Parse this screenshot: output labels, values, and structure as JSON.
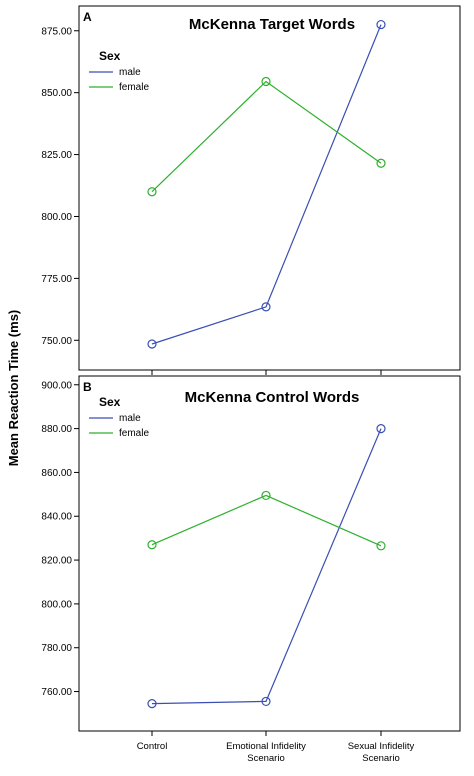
{
  "figure": {
    "ylabel": "Mean Reaction Time (ms)",
    "x_categories": [
      [
        "Control"
      ],
      [
        "Emotional Infidelity",
        "Scenario"
      ],
      [
        "Sexual Infidelity",
        "Scenario"
      ]
    ]
  },
  "colors": {
    "male": "#3a4fb3",
    "female": "#2db02d",
    "axis": "#000000"
  },
  "chart_data": [
    {
      "type": "line",
      "panel": "A",
      "title": "McKenna Target Words",
      "categories": [
        "Control",
        "Emotional Infidelity Scenario",
        "Sexual Infidelity Scenario"
      ],
      "ylabel": "Mean Reaction Time (ms)",
      "ylim": [
        738,
        885
      ],
      "yticks": [
        750,
        775,
        800,
        825,
        850,
        875
      ],
      "ytick_labels": [
        "750.00",
        "775.00",
        "800.00",
        "825.00",
        "850.00",
        "875.00"
      ],
      "legend": {
        "title": "Sex",
        "entries": [
          "male",
          "female"
        ],
        "position": "top-left"
      },
      "series": [
        {
          "name": "male",
          "values": [
            748.5,
            763.5,
            877.5
          ]
        },
        {
          "name": "female",
          "values": [
            810.0,
            854.5,
            821.5
          ]
        }
      ]
    },
    {
      "type": "line",
      "panel": "B",
      "title": "McKenna Control Words",
      "categories": [
        "Control",
        "Emotional Infidelity Scenario",
        "Sexual Infidelity Scenario"
      ],
      "ylabel": "Mean Reaction Time (ms)",
      "ylim": [
        742,
        904
      ],
      "yticks": [
        760,
        780,
        800,
        820,
        840,
        860,
        880,
        900
      ],
      "ytick_labels": [
        "760.00",
        "780.00",
        "800.00",
        "820.00",
        "840.00",
        "860.00",
        "880.00",
        "900.00"
      ],
      "legend": {
        "title": "Sex",
        "entries": [
          "male",
          "female"
        ],
        "position": "top-left"
      },
      "series": [
        {
          "name": "male",
          "values": [
            754.5,
            755.5,
            880.0
          ]
        },
        {
          "name": "female",
          "values": [
            827.0,
            849.5,
            826.5
          ]
        }
      ]
    }
  ]
}
